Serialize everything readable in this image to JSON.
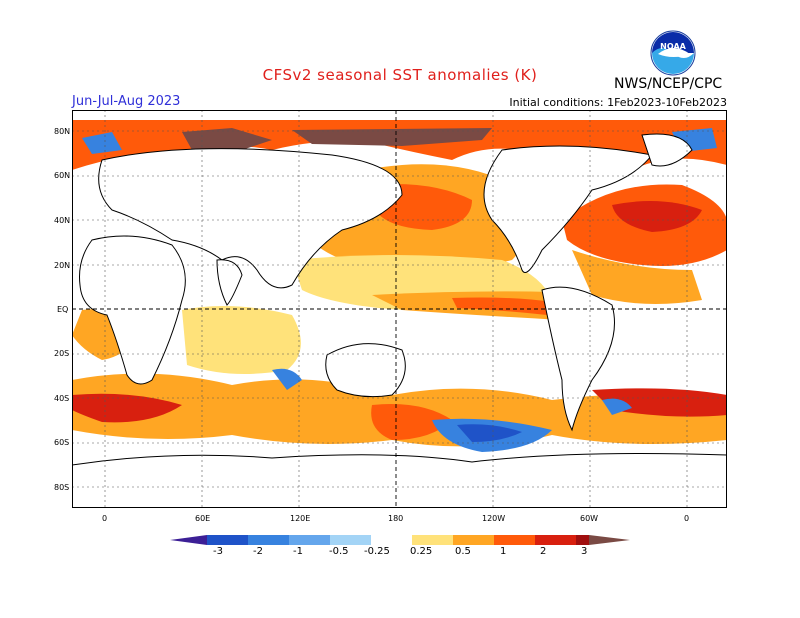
{
  "header": {
    "title": "CFSv2 seasonal SST anomalies (K)",
    "season": "Jun-Jul-Aug 2023",
    "initial_conditions": "Initial conditions: 1Feb2023-10Feb2023",
    "organization": "NWS/NCEP/CPC",
    "logo_text": "NOAA"
  },
  "axes": {
    "lat_labels": [
      "80N",
      "60N",
      "40N",
      "20N",
      "EQ",
      "20S",
      "40S",
      "60S",
      "80S"
    ],
    "lon_labels": [
      "0",
      "60E",
      "120E",
      "180",
      "120W",
      "60W",
      "0"
    ]
  },
  "colorbar": {
    "labels": [
      "-3",
      "-2",
      "-1",
      "-0.5",
      "-0.25",
      "0.25",
      "0.5",
      "1",
      "2",
      "3"
    ],
    "colors": [
      "#3c1f96",
      "#1f53c8",
      "#3782df",
      "#64a6ec",
      "#a3d4f6",
      "#ffffff",
      "#ffe27a",
      "#ffa623",
      "#ff5a0a",
      "#d8200f",
      "#a00f0f",
      "#7a4a44"
    ]
  }
}
